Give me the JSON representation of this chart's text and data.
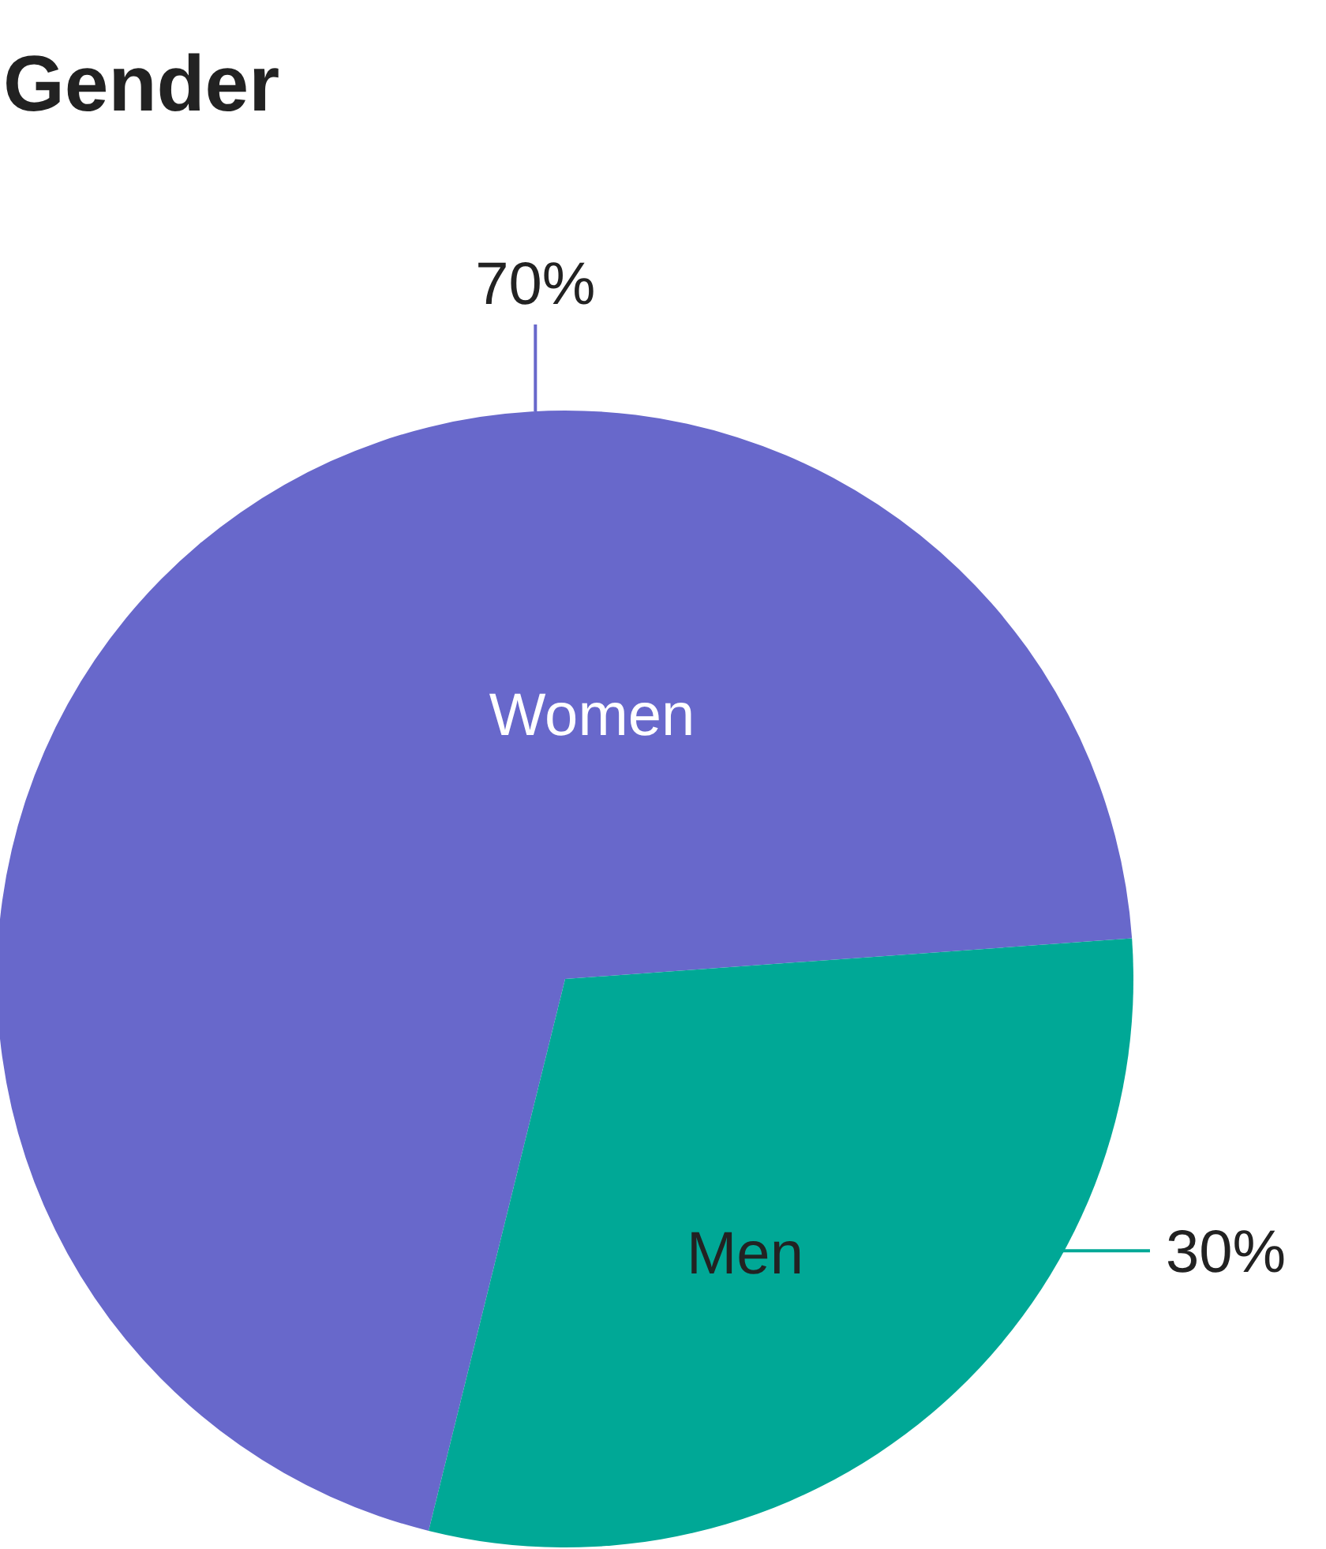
{
  "chart_data": {
    "type": "pie",
    "title": "Gender",
    "categories": [
      "Women",
      "Men"
    ],
    "values": [
      70,
      30
    ],
    "colors": [
      "#6868cb",
      "#00a896"
    ],
    "value_labels": [
      "70%",
      "30%"
    ]
  }
}
